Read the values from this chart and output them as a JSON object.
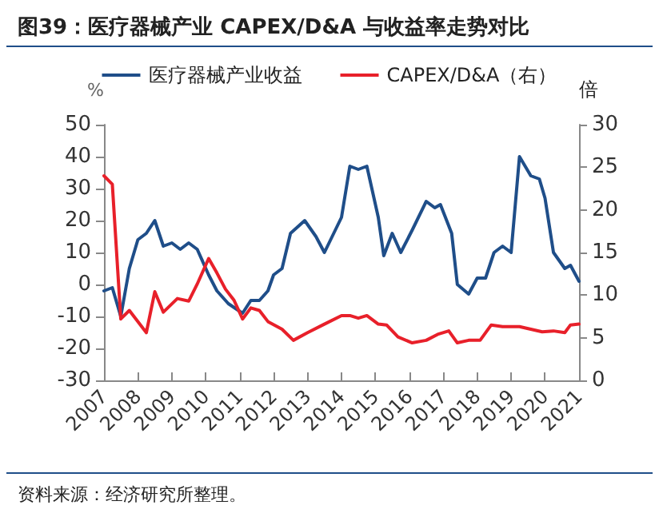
{
  "chart_data": {
    "type": "line",
    "title": "图39：医疗器械产业 CAPEX/D&A 与收益率走势对比",
    "ylabel": "%",
    "y2label": "倍",
    "annotations": [
      "资料来源：经济研究所整理。"
    ],
    "xlim": [
      "2007",
      "2021"
    ],
    "xticks": [
      "2007",
      "2008",
      "2009",
      "2010",
      "2011",
      "2012",
      "2013",
      "2014",
      "2015",
      "2016",
      "2017",
      "2018",
      "2019",
      "2020",
      "2021"
    ],
    "ylim": [
      -30,
      50
    ],
    "yticks": [
      -30,
      -20,
      -10,
      0,
      10,
      20,
      30,
      40,
      50
    ],
    "y2lim": [
      0,
      30
    ],
    "y2ticks": [
      0,
      5,
      10,
      15,
      20,
      25,
      30
    ],
    "grid": false,
    "legend": "top",
    "marker": "none",
    "line_style": "solid",
    "series": [
      {
        "name": "医疗器械产业收益",
        "color": "#1f4e89",
        "x": [
          "2007-01",
          "2007-04",
          "2007-07",
          "2007-10",
          "2008-01",
          "2008-04",
          "2008-07",
          "2008-10",
          "2009-01",
          "2009-04",
          "2009-07",
          "2009-10",
          "2010-02",
          "2010-05",
          "2010-09",
          "2011-02",
          "2011-05",
          "2011-08",
          "2011-11",
          "2012-01",
          "2012-04",
          "2012-07",
          "2012-12",
          "2013-04",
          "2013-07",
          "2014-01",
          "2014-04",
          "2014-07",
          "2014-10",
          "2015-02",
          "2015-04",
          "2015-07",
          "2015-10",
          "2016-02",
          "2016-07",
          "2016-10",
          "2016-12",
          "2017-04",
          "2017-06",
          "2017-10",
          "2018-01",
          "2018-04",
          "2018-07",
          "2018-10",
          "2019-01",
          "2019-04",
          "2019-08",
          "2019-11",
          "2020-01",
          "2020-04",
          "2020-08",
          "2020-10",
          "2021-01"
        ],
        "values": [
          -2,
          -1,
          -10,
          5,
          14,
          16,
          20,
          12,
          13,
          11,
          13,
          11,
          3,
          -2,
          -6,
          -9,
          -5,
          -5,
          -2,
          3,
          5,
          16,
          20,
          15,
          10,
          21,
          37,
          36,
          37,
          21,
          9,
          16,
          10,
          17,
          26,
          24,
          25,
          16,
          0,
          -3,
          2,
          2,
          10,
          12,
          10,
          40,
          34,
          33,
          27,
          10,
          5,
          6,
          1
        ]
      },
      {
        "name": "CAPEX/D&A（右）",
        "color": "#e8202a",
        "axis": "y2",
        "x": [
          "2007-01",
          "2007-04",
          "2007-07",
          "2007-10",
          "2008-04",
          "2008-07",
          "2008-10",
          "2009-03",
          "2009-07",
          "2009-10",
          "2010-02",
          "2010-05",
          "2010-08",
          "2010-11",
          "2011-02",
          "2011-05",
          "2011-08",
          "2011-11",
          "2012-04",
          "2012-08",
          "2013-01",
          "2013-07",
          "2014-01",
          "2014-04",
          "2014-07",
          "2014-10",
          "2015-02",
          "2015-05",
          "2015-09",
          "2016-02",
          "2016-07",
          "2016-11",
          "2017-03",
          "2017-06",
          "2017-10",
          "2018-02",
          "2018-06",
          "2018-10",
          "2019-04",
          "2019-08",
          "2019-12",
          "2020-04",
          "2020-08",
          "2020-10",
          "2021-01"
        ],
        "values": [
          24,
          23,
          7.2,
          8.2,
          5.6,
          10.4,
          8,
          9.6,
          9.3,
          11.3,
          14.3,
          12.6,
          10.7,
          9.4,
          7.2,
          8.5,
          8.2,
          6.9,
          6,
          4.7,
          5.6,
          6.6,
          7.6,
          7.6,
          7.3,
          7.6,
          6.6,
          6.5,
          5.1,
          4.4,
          4.7,
          5.4,
          5.8,
          4.4,
          4.7,
          4.7,
          6.5,
          6.3,
          6.3,
          6,
          5.7,
          5.8,
          5.6,
          6.5,
          6.6
        ]
      }
    ]
  }
}
